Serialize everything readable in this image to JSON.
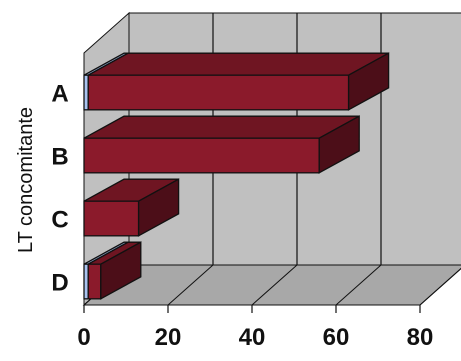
{
  "chart_data": {
    "type": "bar",
    "orientation": "horizontal",
    "three_d": true,
    "categories": [
      "A",
      "B",
      "C",
      "D"
    ],
    "series": [
      {
        "values": [
          1,
          0,
          0,
          1
        ],
        "color": "#a9c3f0"
      },
      {
        "values": [
          62,
          56,
          13,
          3
        ],
        "color": "#8b1a2b"
      }
    ],
    "title": "",
    "xlabel": "",
    "ylabel": "LT concomitante",
    "xlim": [
      0,
      80
    ],
    "xticks": [
      "0",
      "20",
      "40",
      "60",
      "80"
    ],
    "grid": true,
    "legend": "none",
    "colors": {
      "wall": "#c0c0c0",
      "floor": "#a8a8a8",
      "grid": "#111111"
    }
  }
}
